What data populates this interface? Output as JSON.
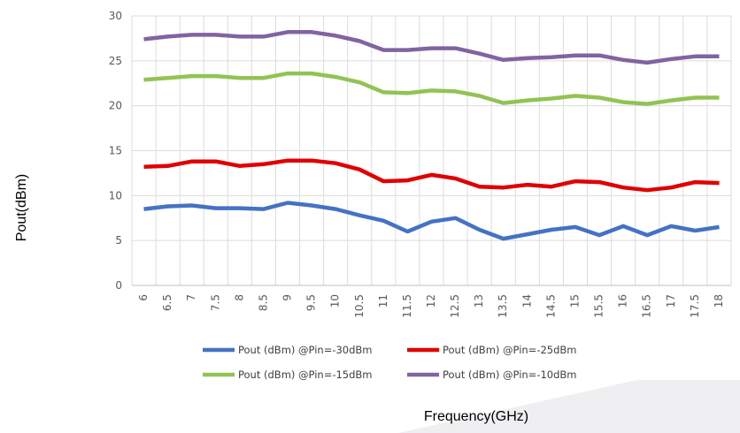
{
  "chart_data": {
    "type": "line",
    "title": "",
    "xlabel": "Frequency(GHz)",
    "ylabel": "Pout(dBm)",
    "ylim": [
      0,
      30
    ],
    "yticks": [
      0,
      5,
      10,
      15,
      20,
      25,
      30
    ],
    "grid": true,
    "legend_position": "bottom",
    "categories": [
      "6",
      "6.5",
      "7",
      "7.5",
      "8",
      "8.5",
      "9",
      "9.5",
      "10",
      "10.5",
      "11",
      "11.5",
      "12",
      "12.5",
      "13",
      "13.5",
      "14",
      "14.5",
      "15",
      "15.5",
      "16",
      "16.5",
      "17",
      "17.5",
      "18"
    ],
    "series": [
      {
        "name": "Pout (dBm) @Pin=-30dBm",
        "color": "#4472C4",
        "values": [
          8.5,
          8.8,
          8.9,
          8.6,
          8.6,
          8.5,
          9.2,
          8.9,
          8.5,
          7.8,
          7.2,
          6.0,
          7.1,
          7.5,
          6.2,
          5.2,
          5.7,
          6.2,
          6.5,
          5.6,
          6.6,
          5.6,
          6.6,
          6.1,
          6.5
        ]
      },
      {
        "name": "Pout (dBm) @Pin=-25dBm",
        "color": "#E00000",
        "values": [
          13.2,
          13.3,
          13.8,
          13.8,
          13.3,
          13.5,
          13.9,
          13.9,
          13.6,
          12.9,
          11.6,
          11.7,
          12.3,
          11.9,
          11.0,
          10.9,
          11.2,
          11.0,
          11.6,
          11.5,
          10.9,
          10.6,
          10.9,
          11.5,
          11.4
        ]
      },
      {
        "name": "Pout (dBm) @Pin=-15dBm",
        "color": "#92C353",
        "values": [
          22.9,
          23.1,
          23.3,
          23.3,
          23.1,
          23.1,
          23.6,
          23.6,
          23.2,
          22.6,
          21.5,
          21.4,
          21.7,
          21.6,
          21.1,
          20.3,
          20.6,
          20.8,
          21.1,
          20.9,
          20.4,
          20.2,
          20.6,
          20.9,
          20.9
        ]
      },
      {
        "name": "Pout (dBm) @Pin=-10dBm",
        "color": "#8064A2",
        "values": [
          27.4,
          27.7,
          27.9,
          27.9,
          27.7,
          27.7,
          28.2,
          28.2,
          27.8,
          27.2,
          26.2,
          26.2,
          26.4,
          26.4,
          25.8,
          25.1,
          25.3,
          25.4,
          25.6,
          25.6,
          25.1,
          24.8,
          25.2,
          25.5,
          25.5
        ]
      }
    ]
  }
}
